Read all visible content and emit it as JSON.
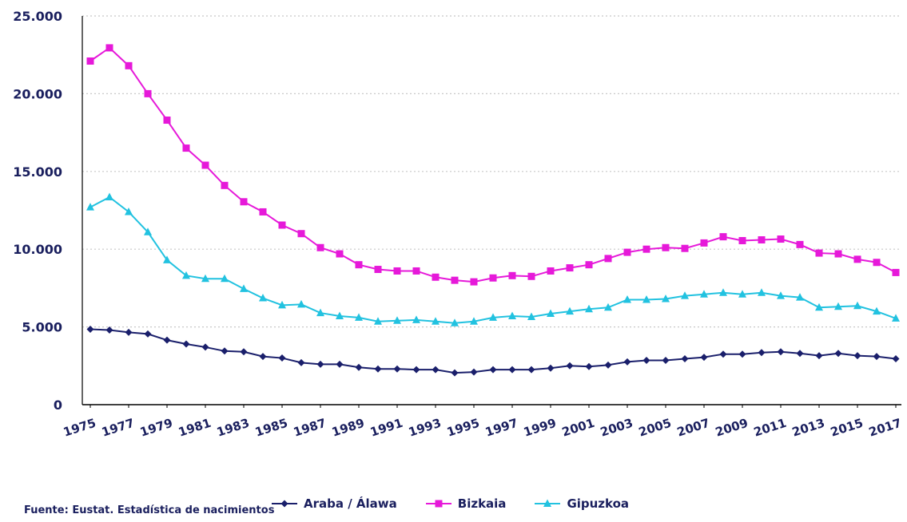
{
  "chart_data": {
    "type": "line",
    "x": [
      1975,
      1976,
      1977,
      1978,
      1979,
      1980,
      1981,
      1982,
      1983,
      1984,
      1985,
      1986,
      1987,
      1988,
      1989,
      1990,
      1991,
      1992,
      1993,
      1994,
      1995,
      1996,
      1997,
      1998,
      1999,
      2000,
      2001,
      2002,
      2003,
      2004,
      2005,
      2006,
      2007,
      2008,
      2009,
      2010,
      2011,
      2012,
      2013,
      2014,
      2015,
      2016,
      2017
    ],
    "x_tick_labels": [
      "1975",
      "1977",
      "1979",
      "1981",
      "1983",
      "1985",
      "1987",
      "1989",
      "1991",
      "1993",
      "1995",
      "1997",
      "1999",
      "2001",
      "2003",
      "2005",
      "2007",
      "2009",
      "2011",
      "2013",
      "2015",
      "2017"
    ],
    "y_tick_labels": [
      "0",
      "5.000",
      "10.000",
      "15.000",
      "20.000",
      "25.000"
    ],
    "ylim": [
      0,
      25000
    ],
    "grid": "horizontal-dotted",
    "legend_position": "bottom",
    "series": [
      {
        "name": "Araba / Álawa",
        "color": "#1a1f6b",
        "marker": "diamond",
        "values": [
          4850,
          4800,
          4650,
          4550,
          4150,
          3900,
          3700,
          3450,
          3400,
          3100,
          3000,
          2700,
          2600,
          2600,
          2400,
          2300,
          2300,
          2250,
          2250,
          2050,
          2100,
          2250,
          2250,
          2250,
          2350,
          2500,
          2450,
          2550,
          2750,
          2850,
          2850,
          2950,
          3050,
          3250,
          3250,
          3350,
          3400,
          3300,
          3150,
          3300,
          3150,
          3100,
          2950
        ]
      },
      {
        "name": "Bizkaia",
        "color": "#e619d9",
        "marker": "square",
        "values": [
          22100,
          22950,
          21800,
          20000,
          18300,
          16500,
          15400,
          14100,
          13050,
          12400,
          11550,
          11000,
          10100,
          9700,
          9000,
          8700,
          8600,
          8600,
          8200,
          8000,
          7900,
          8150,
          8300,
          8250,
          8600,
          8800,
          9000,
          9400,
          9800,
          10000,
          10100,
          10050,
          10400,
          10800,
          10550,
          10600,
          10650,
          10300,
          9750,
          9700,
          9350,
          9150,
          8500
        ]
      },
      {
        "name": "Gipuzkoa",
        "color": "#22c2e0",
        "marker": "triangle",
        "values": [
          12700,
          13350,
          12400,
          11100,
          9300,
          8300,
          8100,
          8100,
          7450,
          6850,
          6400,
          6450,
          5900,
          5700,
          5600,
          5350,
          5400,
          5450,
          5350,
          5250,
          5350,
          5600,
          5700,
          5650,
          5850,
          6000,
          6150,
          6250,
          6750,
          6750,
          6800,
          7000,
          7100,
          7200,
          7100,
          7200,
          7000,
          6900,
          6250,
          6300,
          6350,
          6000,
          5550
        ]
      }
    ],
    "source": "Fuente: Eustat. Estadística de nacimientos"
  }
}
